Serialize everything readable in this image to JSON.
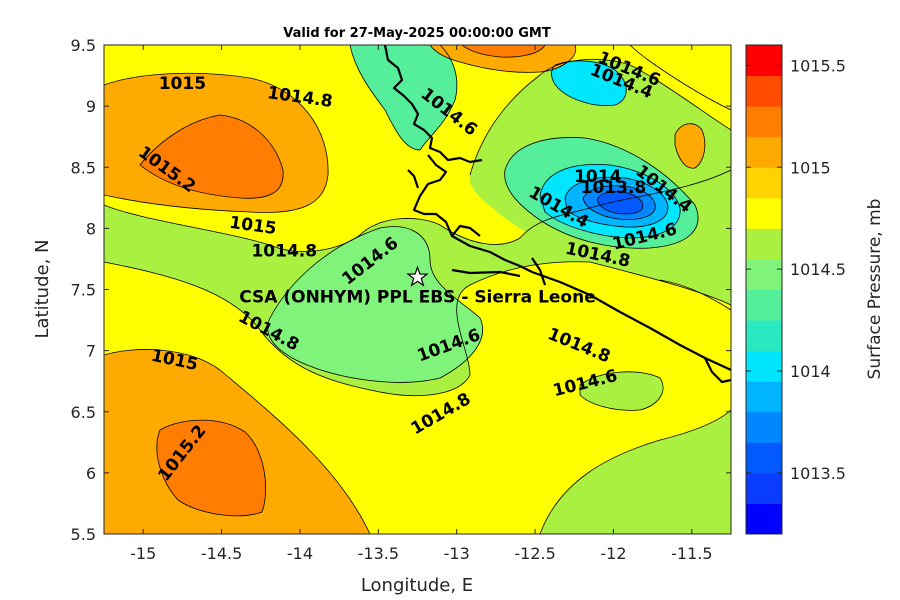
{
  "title": "Valid for 27-May-2025 00:00:00 GMT",
  "site_label": "CSA (ONHYM) PPL EBS  - Sierra Leone",
  "site_marker_icon": "star-icon",
  "chart_data": {
    "type": "heatmap",
    "subtype": "filled-contour map",
    "xlabel": "Longitude, E",
    "ylabel": "Latitude, N",
    "xlim": [
      -15.25,
      -11.25
    ],
    "ylim": [
      5.5,
      9.5
    ],
    "x_ticks": [
      "-15",
      "-14.5",
      "-14",
      "-13.5",
      "-13",
      "-12.5",
      "-12",
      "-11.5"
    ],
    "x_tick_values": [
      -15,
      -14.5,
      -14,
      -13.5,
      -13,
      -12.5,
      -12,
      -11.5
    ],
    "y_ticks": [
      "5.5",
      "6",
      "6.5",
      "7",
      "7.5",
      "8",
      "8.5",
      "9",
      "9.5"
    ],
    "y_tick_values": [
      5.5,
      6,
      6.5,
      7,
      7.5,
      8,
      8.5,
      9,
      9.5
    ],
    "site": {
      "lon": -13.25,
      "lat": 7.6
    },
    "colorbar": {
      "label": "Surface Pressure, mb",
      "range": [
        1013.2,
        1015.6
      ],
      "levels": [
        {
          "from": 1013.2,
          "to": 1013.35,
          "color": "#0000ff"
        },
        {
          "from": 1013.35,
          "to": 1013.5,
          "color": "#0a3cff"
        },
        {
          "from": 1013.5,
          "to": 1013.65,
          "color": "#005aff"
        },
        {
          "from": 1013.65,
          "to": 1013.8,
          "color": "#0087ff"
        },
        {
          "from": 1013.8,
          "to": 1013.95,
          "color": "#00b4ff"
        },
        {
          "from": 1013.95,
          "to": 1014.1,
          "color": "#00e6ff"
        },
        {
          "from": 1014.1,
          "to": 1014.25,
          "color": "#2ae8c0"
        },
        {
          "from": 1014.25,
          "to": 1014.4,
          "color": "#55ee9a"
        },
        {
          "from": 1014.4,
          "to": 1014.55,
          "color": "#80f47a"
        },
        {
          "from": 1014.55,
          "to": 1014.7,
          "color": "#aaf040"
        },
        {
          "from": 1014.7,
          "to": 1014.85,
          "color": "#ffff00"
        },
        {
          "from": 1014.85,
          "to": 1015.0,
          "color": "#ffd200"
        },
        {
          "from": 1015.0,
          "to": 1015.15,
          "color": "#ffaa00"
        },
        {
          "from": 1015.15,
          "to": 1015.3,
          "color": "#ff7d00"
        },
        {
          "from": 1015.3,
          "to": 1015.45,
          "color": "#ff4b00"
        },
        {
          "from": 1015.45,
          "to": 1015.6,
          "color": "#ff0000"
        }
      ],
      "tick_labels": [
        "1013.5",
        "1014",
        "1014.5",
        "1015",
        "1015.5"
      ],
      "tick_values": [
        1013.5,
        1014.0,
        1014.5,
        1015.0,
        1015.5
      ]
    },
    "contour_labels": [
      {
        "text": "1015",
        "lon": -14.75,
        "lat": 9.18,
        "angle": 0
      },
      {
        "text": "1014.8",
        "lon": -14.0,
        "lat": 9.07,
        "angle": 8
      },
      {
        "text": "1015.2",
        "lon": -14.85,
        "lat": 8.48,
        "angle": 36
      },
      {
        "text": "1015",
        "lon": -14.3,
        "lat": 8.02,
        "angle": 8
      },
      {
        "text": "1014.8",
        "lon": -14.1,
        "lat": 7.81,
        "angle": 0
      },
      {
        "text": "1014.6",
        "lon": -13.55,
        "lat": 7.73,
        "angle": -38
      },
      {
        "text": "1014.6",
        "lon": -13.05,
        "lat": 8.95,
        "angle": 38
      },
      {
        "text": "1014.6",
        "lon": -11.9,
        "lat": 9.3,
        "angle": 22
      },
      {
        "text": "1014.4",
        "lon": -11.95,
        "lat": 9.2,
        "angle": 22
      },
      {
        "text": "1014",
        "lon": -12.1,
        "lat": 8.42,
        "angle": 0
      },
      {
        "text": "1013.8",
        "lon": -12.0,
        "lat": 8.33,
        "angle": 0
      },
      {
        "text": "1014.4",
        "lon": -11.68,
        "lat": 8.32,
        "angle": 38
      },
      {
        "text": "1014.4",
        "lon": -12.35,
        "lat": 8.17,
        "angle": 30
      },
      {
        "text": "1014.6",
        "lon": -11.8,
        "lat": 7.93,
        "angle": -14
      },
      {
        "text": "1014.8",
        "lon": -12.1,
        "lat": 7.78,
        "angle": 12
      },
      {
        "text": "1014.8",
        "lon": -14.2,
        "lat": 7.16,
        "angle": 28
      },
      {
        "text": "1015",
        "lon": -14.8,
        "lat": 6.92,
        "angle": 12
      },
      {
        "text": "1014.6",
        "lon": -13.05,
        "lat": 7.04,
        "angle": -20
      },
      {
        "text": "1014.8",
        "lon": -12.22,
        "lat": 7.04,
        "angle": 22
      },
      {
        "text": "1014.6",
        "lon": -12.18,
        "lat": 6.73,
        "angle": -14
      },
      {
        "text": "1014.8",
        "lon": -13.1,
        "lat": 6.48,
        "angle": -30
      },
      {
        "text": "1015.2",
        "lon": -14.75,
        "lat": 6.16,
        "angle": -52
      }
    ]
  }
}
